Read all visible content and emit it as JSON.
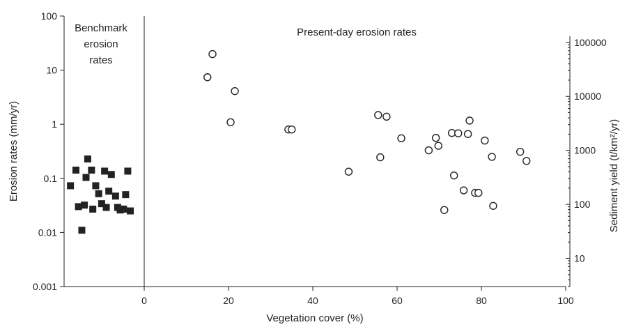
{
  "chart_data": {
    "type": "scatter",
    "title": "",
    "xlabel": "Vegetation cover (%)",
    "ylabel": "Erosion rates (mm/yr)",
    "y2label": "Sediment yield (t/km²/yr)",
    "x_ticks": [
      0,
      20,
      40,
      60,
      80,
      100
    ],
    "xlim": [
      -18,
      100
    ],
    "ylim": [
      0.001,
      100
    ],
    "y_scale": "log",
    "y_ticks": [
      "0.001",
      "0.01",
      "0.1",
      "1",
      "10",
      "100"
    ],
    "y2lim": [
      3,
      130000
    ],
    "y2_scale": "log",
    "y2_ticks": [
      "10",
      "100",
      "1000",
      "10000",
      "100000"
    ],
    "annotations": {
      "benchmark": [
        "Benchmark",
        "erosion",
        "rates"
      ],
      "present": "Present-day erosion rates"
    },
    "series": [
      {
        "marker": "filled-square",
        "x": [
          -17.5,
          -16.2,
          -15.6,
          -14.8,
          -14.2,
          -13.8,
          -13.4,
          -12.5,
          -12.2,
          -11.5,
          -10.8,
          -10.1,
          -9.4,
          -9.0,
          -8.4,
          -7.8,
          -6.8,
          -6.3,
          -5.7,
          -5.3,
          -4.9,
          -4.4,
          -3.9,
          -3.3
        ],
        "y": [
          0.073,
          0.142,
          0.03,
          0.011,
          0.032,
          0.104,
          0.228,
          0.142,
          0.027,
          0.073,
          0.052,
          0.034,
          0.136,
          0.029,
          0.058,
          0.118,
          0.047,
          0.029,
          0.026,
          0.027,
          0.027,
          0.05,
          0.136,
          0.025
        ]
      },
      {
        "marker": "open-circle",
        "x": [
          15.0,
          16.2,
          20.5,
          21.5,
          34.2,
          35.0,
          48.5,
          55.5,
          56.0,
          57.5,
          61.0,
          67.5,
          69.2,
          69.8,
          71.2,
          73.0,
          73.5,
          74.5,
          75.8,
          76.8,
          77.2,
          78.5,
          79.3,
          80.8,
          82.5,
          82.8,
          89.2,
          90.7
        ],
        "y": [
          7.4,
          19.8,
          1.09,
          4.1,
          0.8,
          0.8,
          0.133,
          1.48,
          0.245,
          1.38,
          0.55,
          0.33,
          0.56,
          0.4,
          0.026,
          0.69,
          0.113,
          0.68,
          0.06,
          0.66,
          1.17,
          0.054,
          0.054,
          0.5,
          0.25,
          0.031,
          0.31,
          0.21
        ]
      }
    ]
  }
}
